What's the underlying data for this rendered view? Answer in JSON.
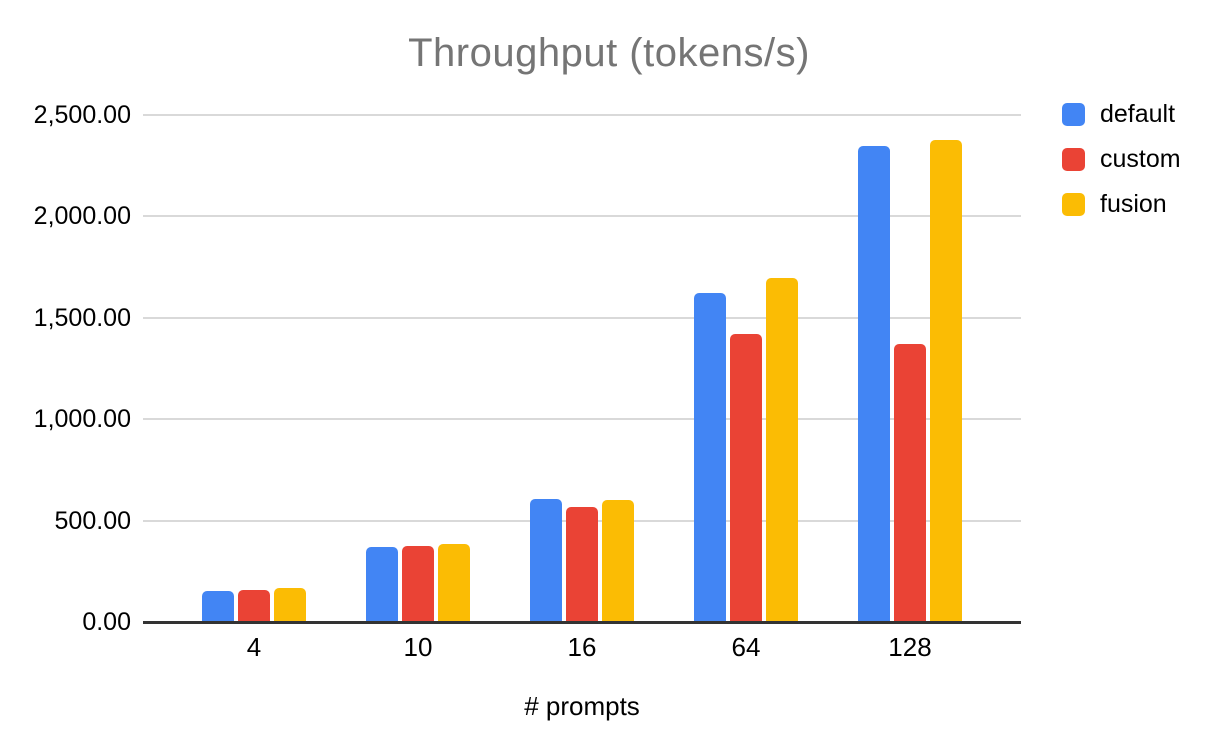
{
  "chart_data": {
    "type": "bar",
    "title": "Throughput (tokens/s)",
    "xlabel": "# prompts",
    "ylabel": "",
    "categories": [
      "4",
      "10",
      "16",
      "64",
      "128"
    ],
    "series": [
      {
        "name": "default",
        "color": "#4285F4",
        "values": [
          155,
          372,
          607,
          1622,
          2345
        ]
      },
      {
        "name": "custom",
        "color": "#EA4335",
        "values": [
          157,
          377,
          566,
          1419,
          1370
        ]
      },
      {
        "name": "fusion",
        "color": "#FBBC04",
        "values": [
          170,
          385,
          600,
          1694,
          2376
        ]
      }
    ],
    "ylim": [
      0,
      2500
    ],
    "ytick_step": 500,
    "ytick_labels": [
      "0.00",
      "500.00",
      "1,000.00",
      "1,500.00",
      "2,000.00",
      "2,500.00"
    ],
    "grid": true,
    "legend_position": "right",
    "styles": {
      "title_color": "#757575",
      "axis_text_color": "#000000",
      "gridline_color": "#D9D9D9",
      "baseline_color": "#333333",
      "background": "#FFFFFF"
    }
  }
}
